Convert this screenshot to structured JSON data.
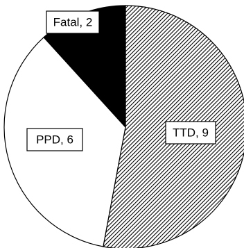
{
  "chart_data": {
    "type": "pie",
    "categories": [
      "TTD",
      "PPD",
      "Fatal"
    ],
    "values": [
      9,
      6,
      2
    ],
    "labels": [
      "TTD, 9",
      "PPD, 6",
      "Fatal, 2"
    ],
    "fills": [
      "hatch",
      "#ffffff",
      "#000000"
    ],
    "start": "top, clockwise",
    "title": "",
    "legend": "none"
  }
}
